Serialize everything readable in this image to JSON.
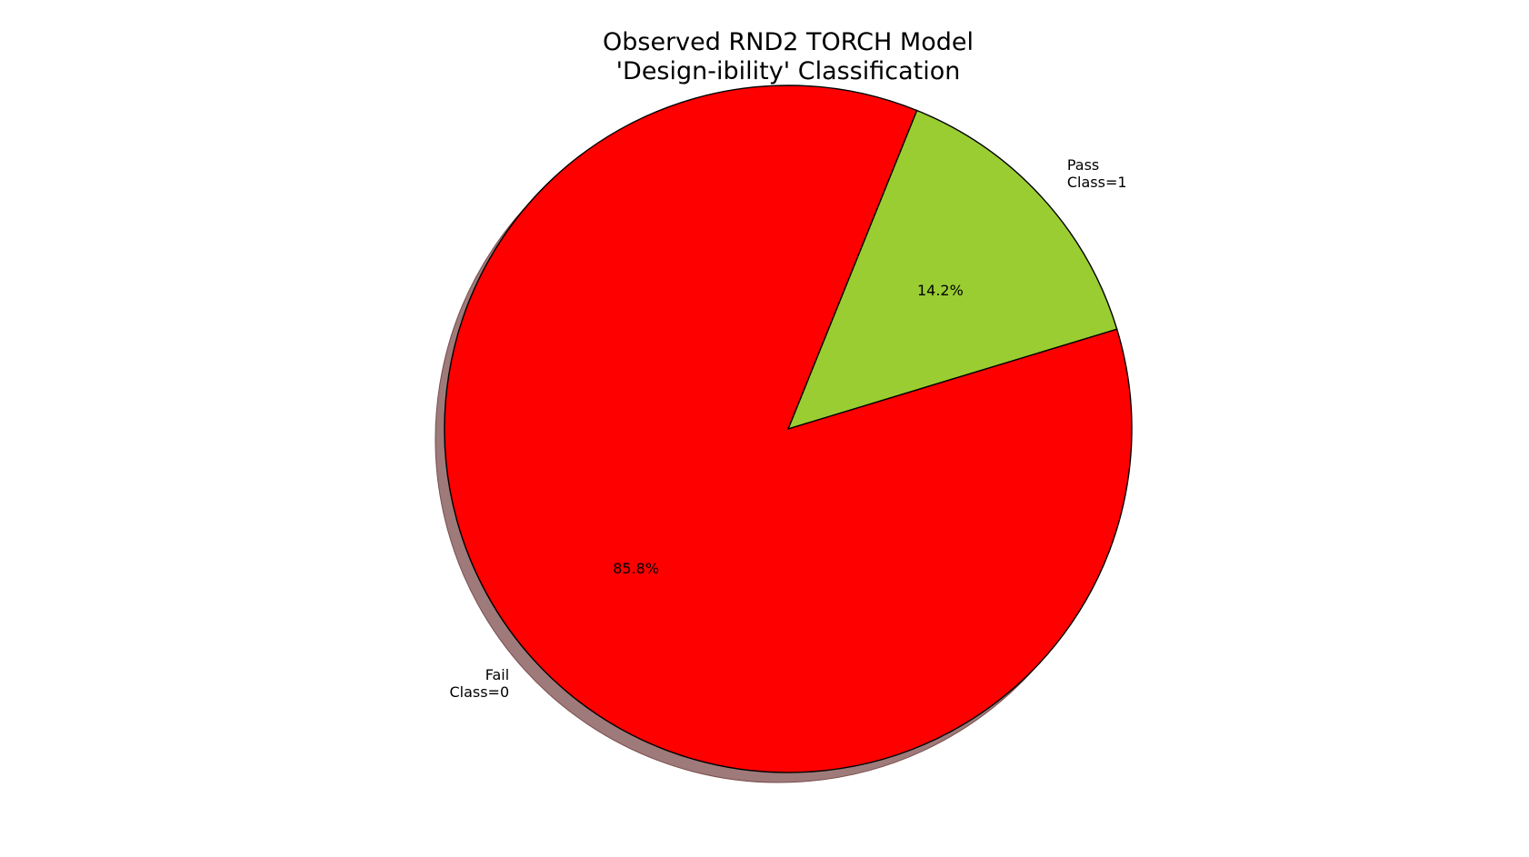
{
  "chart_data": {
    "type": "pie",
    "title": [
      "Observed RND2 TORCH Model",
      "'Design-ibility' Classification"
    ],
    "start_angle_deg": 68,
    "counterclock": false,
    "shadow": true,
    "slices": [
      {
        "label_lines": [
          "Pass",
          "Class=1"
        ],
        "value": 14.2,
        "percent_label": "14.2%",
        "color": "#9acd32"
      },
      {
        "label_lines": [
          "Fail",
          "Class=0"
        ],
        "value": 85.8,
        "percent_label": "85.8%",
        "color": "#ff0000"
      }
    ],
    "edge_color": "#000000",
    "shadow_color": "#9e7a7a"
  }
}
